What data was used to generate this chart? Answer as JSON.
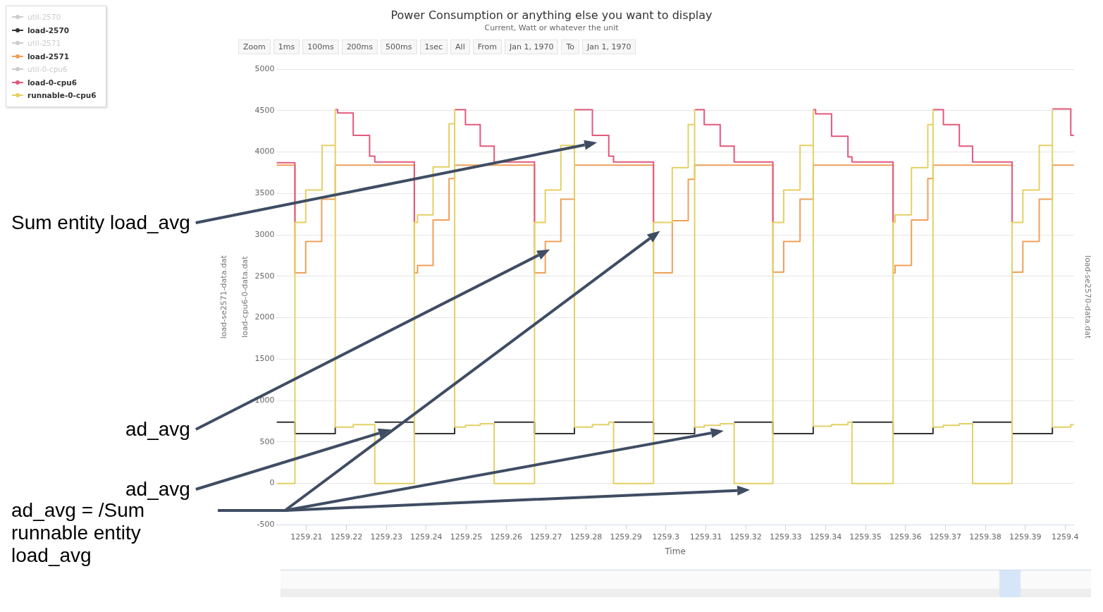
{
  "chart_data": {
    "type": "step",
    "title": "Power Consumption or anything else you want to display",
    "subtitle": "Current, Watt or whatever the unit",
    "xlabel": "Time",
    "ylabel": "load-cpu6-0-data.dat",
    "y3label": "load-se2571-data.dat",
    "y2label": "load-se2570-data.dat",
    "xlim": [
      1259.2025,
      1259.4022
    ],
    "xticks": [
      1259.21,
      1259.22,
      1259.23,
      1259.24,
      1259.25,
      1259.26,
      1259.27,
      1259.28,
      1259.29,
      1259.3,
      1259.31,
      1259.32,
      1259.33,
      1259.34,
      1259.35,
      1259.36,
      1259.37,
      1259.38,
      1259.39,
      1259.4
    ],
    "ylim": [
      -500,
      5000
    ],
    "yticks": [
      -500,
      0,
      500,
      1000,
      1500,
      2000,
      2500,
      3000,
      3500,
      4000,
      4500,
      5000
    ],
    "grid": "y",
    "legend": "top left",
    "series": [
      {
        "name": "util-2570",
        "color": "#cccccc"
      },
      {
        "name": "load-2570",
        "color": "#333333",
        "x": [
          1259.2025,
          1259.2071,
          1259.2172,
          1259.2176,
          1259.2271,
          1259.237,
          1259.2471,
          1259.2475,
          1259.257,
          1259.2671,
          1259.2771,
          1259.2775,
          1259.2869,
          1259.2969,
          1259.3072,
          1259.3076,
          1259.3171,
          1259.3268,
          1259.3369,
          1259.3373,
          1259.3466,
          1259.3569,
          1259.3669,
          1259.3673,
          1259.3768,
          1259.3867,
          1259.3968
        ],
        "values": [
          740,
          600,
          680,
          null,
          740,
          600,
          680,
          null,
          740,
          600,
          680,
          null,
          740,
          600,
          680,
          null,
          740,
          600,
          690,
          null,
          740,
          600,
          680,
          null,
          740,
          600,
          680
        ]
      },
      {
        "name": "util-2571",
        "color": "#cccccc"
      },
      {
        "name": "load-2571",
        "color": "#eea05a",
        "x": [
          1259.2025,
          1259.2071,
          1259.2098,
          1259.2138,
          1259.2172,
          1259.237,
          1259.2378,
          1259.2417,
          1259.2457,
          1259.2471,
          1259.2671,
          1259.2698,
          1259.2737,
          1259.2771,
          1259.2969,
          1259.3016,
          1259.3056,
          1259.3072,
          1259.3268,
          1259.3295,
          1259.3336,
          1259.3369,
          1259.3569,
          1259.3574,
          1259.3615,
          1259.3656,
          1259.3669,
          1259.3867,
          1259.3894,
          1259.3935,
          1259.3968,
          1259.4022
        ],
        "values": [
          3840,
          2540,
          2920,
          3430,
          3840,
          2540,
          2630,
          3180,
          3680,
          3840,
          2540,
          2920,
          3430,
          3840,
          2540,
          3170,
          3670,
          3840,
          2550,
          2920,
          3430,
          3840,
          2540,
          2630,
          3180,
          3680,
          3840,
          2550,
          2920,
          3430,
          3840,
          3840
        ]
      },
      {
        "name": "util-0-cpu6",
        "color": "#cccccc"
      },
      {
        "name": "load-0-cpu6",
        "color": "#e2587c",
        "x": [
          1259.2025,
          1259.2071,
          1259.2076,
          1259.2172,
          1259.2178,
          1259.2217,
          1259.2258,
          1259.2271,
          1259.237,
          1259.2375,
          1259.2471,
          1259.2498,
          1259.2535,
          1259.257,
          1259.2671,
          1259.2676,
          1259.2771,
          1259.2816,
          1259.2857,
          1259.2869,
          1259.2969,
          1259.2974,
          1259.3072,
          1259.3096,
          1259.3136,
          1259.3171,
          1259.3268,
          1259.3273,
          1259.3369,
          1259.3375,
          1259.3415,
          1259.3456,
          1259.3466,
          1259.3569,
          1259.3574,
          1259.3669,
          1259.3695,
          1259.3735,
          1259.3768,
          1259.3867,
          1259.3872,
          1259.3968,
          1259.4014,
          1259.4022
        ],
        "values": [
          3870,
          3150,
          null,
          4510,
          4470,
          4200,
          3950,
          3880,
          3150,
          null,
          4510,
          4330,
          4070,
          3880,
          3150,
          null,
          4510,
          4200,
          3950,
          3880,
          3150,
          null,
          4510,
          4330,
          4070,
          3880,
          3150,
          null,
          4510,
          4460,
          4190,
          3940,
          3880,
          3150,
          null,
          4510,
          4330,
          4070,
          3880,
          3150,
          null,
          4520,
          4200,
          4200
        ]
      },
      {
        "name": "runnable-0-cpu6",
        "color": "#e4d064",
        "x": [
          1259.2025,
          1259.2071,
          1259.2098,
          1259.2139,
          1259.2172,
          1259.2172,
          1259.2217,
          1259.2271,
          1259.237,
          1259.2378,
          1259.2417,
          1259.2457,
          1259.2471,
          1259.2471,
          1259.2498,
          1259.2535,
          1259.257,
          1259.2671,
          1259.2698,
          1259.2737,
          1259.2771,
          1259.2771,
          1259.2816,
          1259.2857,
          1259.2869,
          1259.2969,
          1259.3016,
          1259.3056,
          1259.3072,
          1259.3072,
          1259.3096,
          1259.3136,
          1259.3171,
          1259.3268,
          1259.3295,
          1259.3336,
          1259.3369,
          1259.3369,
          1259.3415,
          1259.3456,
          1259.3466,
          1259.3569,
          1259.3574,
          1259.3615,
          1259.3656,
          1259.3669,
          1259.3669,
          1259.3695,
          1259.3735,
          1259.3768,
          1259.3867,
          1259.3894,
          1259.3935,
          1259.3968,
          1259.3968,
          1259.4014,
          1259.4022
        ],
        "values": [
          0,
          3150,
          3540,
          4080,
          4510,
          680,
          710,
          0,
          3150,
          3240,
          3820,
          4340,
          4510,
          680,
          700,
          720,
          0,
          3150,
          3540,
          4080,
          4510,
          680,
          710,
          740,
          0,
          3150,
          3810,
          4330,
          4510,
          680,
          700,
          720,
          0,
          3150,
          3540,
          4080,
          4510,
          690,
          710,
          740,
          0,
          3150,
          3240,
          3810,
          4330,
          4510,
          680,
          700,
          720,
          0,
          3150,
          3540,
          4080,
          4510,
          680,
          710,
          710
        ]
      }
    ],
    "annotations": [
      "Zoom",
      "1ms",
      "100ms",
      "200ms",
      "500ms",
      "1sec",
      "All",
      "From",
      "Jan 1, 1970",
      "To",
      "Jan 1, 1970",
      "Sum entity load_avg",
      "ad_avg",
      "ad_avg",
      "ad_avg = /Sum runnable entity load_avg"
    ]
  }
}
